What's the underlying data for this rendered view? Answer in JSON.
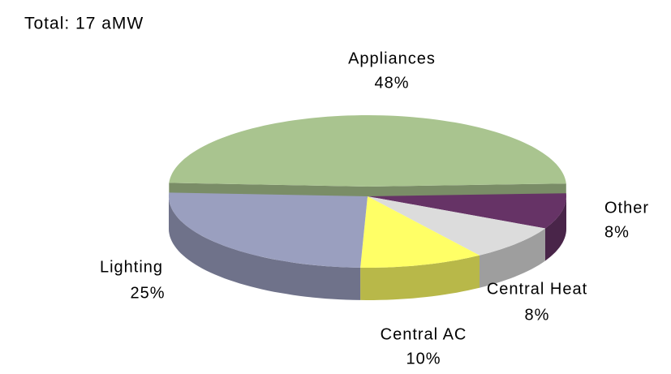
{
  "chart_data": {
    "type": "pie",
    "title": "Total: 17 aMW",
    "categories": [
      "Appliances",
      "Other",
      "Central Heat",
      "Central AC",
      "Lighting"
    ],
    "values": [
      48,
      8,
      8,
      10,
      25
    ],
    "value_labels": [
      "48%",
      "8%",
      "8%",
      "10%",
      "25%"
    ],
    "colors": [
      "#a9c48f",
      "#663366",
      "#dcdcdc",
      "#ffff66",
      "#9a9fbf"
    ]
  }
}
